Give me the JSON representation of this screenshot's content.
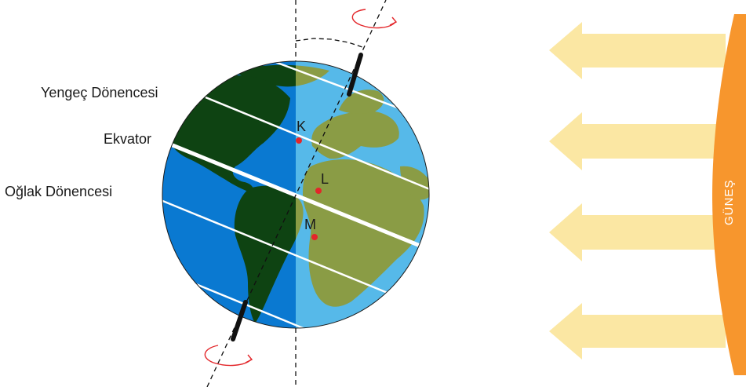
{
  "labels": {
    "tropic_cancer": "Yengeç Dönencesi",
    "equator": "Ekvator",
    "tropic_capricorn": "Oğlak Dönencesi"
  },
  "points": {
    "k": "K",
    "l": "L",
    "m": "M"
  },
  "sun": {
    "label": "GÜNEŞ"
  },
  "colors": {
    "ocean_lit": "#56b9e9",
    "ocean_dark": "#0a79d1",
    "land_lit": "#8a9c45",
    "land_dark": "#0e4312",
    "sun": "#f7962d",
    "rays": "#fbe7a3",
    "point": "#e3262a",
    "rotation_arrow": "#e3262a"
  }
}
